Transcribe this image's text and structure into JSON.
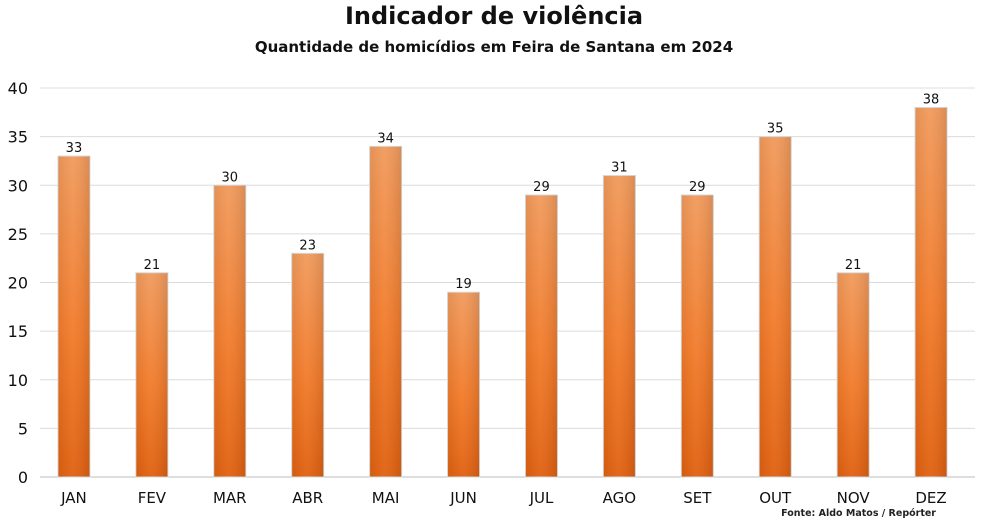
{
  "chart_data": {
    "type": "bar",
    "title": "Indicador de violência",
    "subtitle": "Quantidade de homicídios em Feira de Santana em 2024",
    "categories": [
      "JAN",
      "FEV",
      "MAR",
      "ABR",
      "MAI",
      "JUN",
      "JUL",
      "AGO",
      "SET",
      "OUT",
      "NOV",
      "DEZ"
    ],
    "values": [
      33,
      21,
      30,
      23,
      34,
      19,
      29,
      31,
      29,
      35,
      21,
      38
    ],
    "ylim": [
      0,
      40
    ],
    "yticks": [
      0,
      5,
      10,
      15,
      20,
      25,
      30,
      35,
      40
    ],
    "grid": true,
    "bar_color_top": "#f19a5c",
    "bar_color_mid": "#f27b2a",
    "bar_color_bottom": "#e0600f",
    "source": "Fonte: Aldo Matos / Repórter"
  }
}
